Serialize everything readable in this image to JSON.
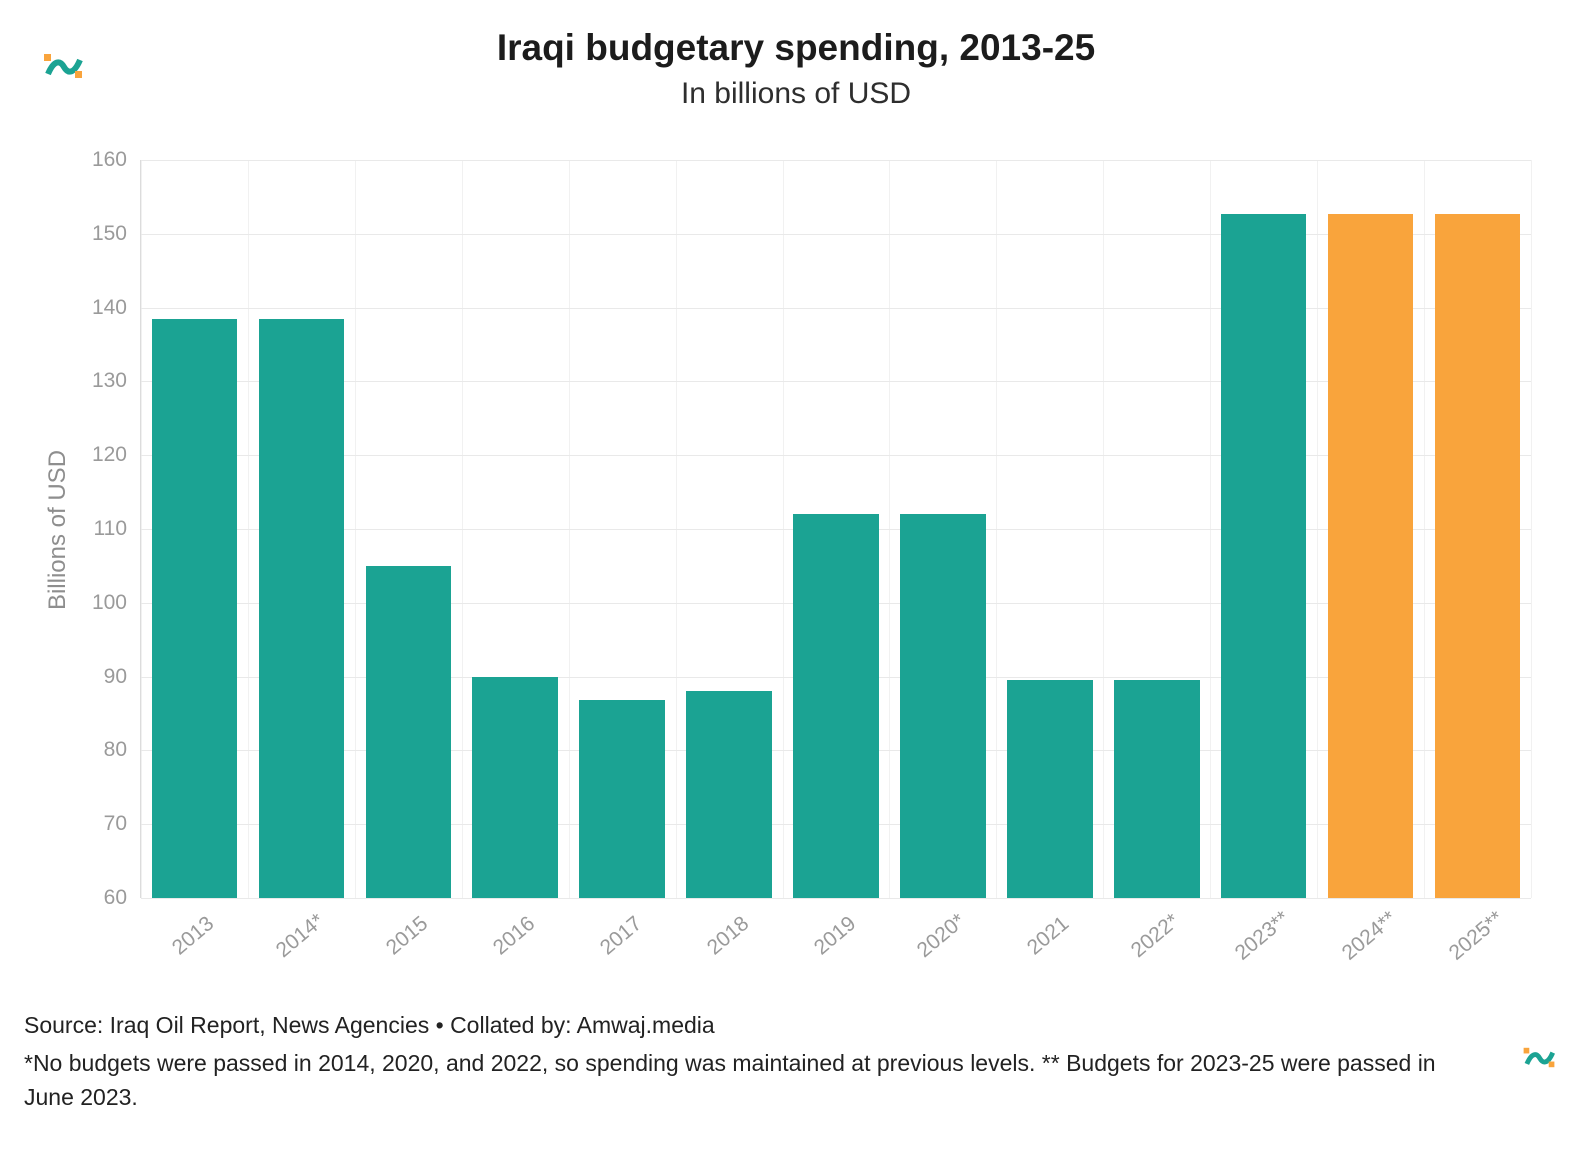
{
  "header": {
    "title": "Iraqi budgetary spending, 2013-25",
    "subtitle": "In billions of USD"
  },
  "chart_data": {
    "type": "bar",
    "title": "Iraqi budgetary spending, 2013-25",
    "subtitle": "In billions of USD",
    "xlabel": "",
    "ylabel": "Billions of USD",
    "ylim": [
      60,
      160
    ],
    "yticks": [
      60,
      70,
      80,
      90,
      100,
      110,
      120,
      130,
      140,
      150,
      160
    ],
    "grid": "on",
    "legend": "none",
    "categories": [
      "2013",
      "2014*",
      "2015",
      "2016",
      "2017",
      "2018",
      "2019",
      "2020*",
      "2021",
      "2022*",
      "2023**",
      "2024**",
      "2025**"
    ],
    "values": [
      138.5,
      138.5,
      105,
      90,
      86.8,
      88,
      112,
      112,
      89.6,
      89.6,
      152.7,
      152.7,
      152.7
    ],
    "colors": [
      "teal",
      "teal",
      "teal",
      "teal",
      "teal",
      "teal",
      "teal",
      "teal",
      "teal",
      "teal",
      "teal",
      "orange",
      "orange"
    ],
    "palette": {
      "teal": "#1BA393",
      "orange": "#F9A43C"
    }
  },
  "footer": {
    "source": "Source: Iraq Oil Report, News Agencies • Collated by: Amwaj.media",
    "note": "*No budgets were passed in 2014, 2020, and 2022, so spending was maintained at previous levels. ** Budgets for 2023-25 were passed in June 2023."
  },
  "branding": {
    "logo_teal": "#1BA393",
    "logo_orange": "#F9A43C"
  }
}
